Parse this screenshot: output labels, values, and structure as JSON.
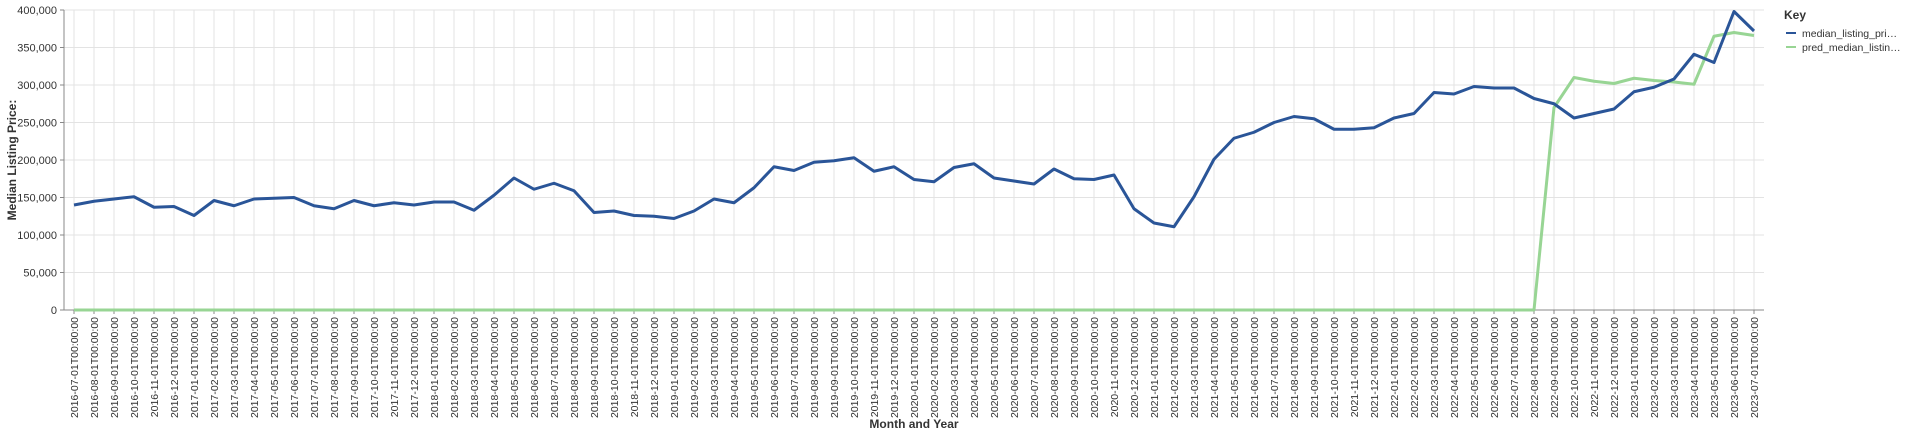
{
  "chart_data": {
    "type": "line",
    "x_label": "Month and Year",
    "y_label": "Median Listing Price:",
    "legend_title": "Key",
    "legend_position": "right",
    "grid": true,
    "categories": [
      "2016-07-01T00:00:00",
      "2016-08-01T00:00:00",
      "2016-09-01T00:00:00",
      "2016-10-01T00:00:00",
      "2016-11-01T00:00:00",
      "2016-12-01T00:00:00",
      "2017-01-01T00:00:00",
      "2017-02-01T00:00:00",
      "2017-03-01T00:00:00",
      "2017-04-01T00:00:00",
      "2017-05-01T00:00:00",
      "2017-06-01T00:00:00",
      "2017-07-01T00:00:00",
      "2017-08-01T00:00:00",
      "2017-09-01T00:00:00",
      "2017-10-01T00:00:00",
      "2017-11-01T00:00:00",
      "2017-12-01T00:00:00",
      "2018-01-01T00:00:00",
      "2018-02-01T00:00:00",
      "2018-03-01T00:00:00",
      "2018-04-01T00:00:00",
      "2018-05-01T00:00:00",
      "2018-06-01T00:00:00",
      "2018-07-01T00:00:00",
      "2018-08-01T00:00:00",
      "2018-09-01T00:00:00",
      "2018-10-01T00:00:00",
      "2018-11-01T00:00:00",
      "2018-12-01T00:00:00",
      "2019-01-01T00:00:00",
      "2019-02-01T00:00:00",
      "2019-03-01T00:00:00",
      "2019-04-01T00:00:00",
      "2019-05-01T00:00:00",
      "2019-06-01T00:00:00",
      "2019-07-01T00:00:00",
      "2019-08-01T00:00:00",
      "2019-09-01T00:00:00",
      "2019-10-01T00:00:00",
      "2019-11-01T00:00:00",
      "2019-12-01T00:00:00",
      "2020-01-01T00:00:00",
      "2020-02-01T00:00:00",
      "2020-03-01T00:00:00",
      "2020-04-01T00:00:00",
      "2020-05-01T00:00:00",
      "2020-06-01T00:00:00",
      "2020-07-01T00:00:00",
      "2020-08-01T00:00:00",
      "2020-09-01T00:00:00",
      "2020-10-01T00:00:00",
      "2020-11-01T00:00:00",
      "2020-12-01T00:00:00",
      "2021-01-01T00:00:00",
      "2021-02-01T00:00:00",
      "2021-03-01T00:00:00",
      "2021-04-01T00:00:00",
      "2021-05-01T00:00:00",
      "2021-06-01T00:00:00",
      "2021-07-01T00:00:00",
      "2021-08-01T00:00:00",
      "2021-09-01T00:00:00",
      "2021-10-01T00:00:00",
      "2021-11-01T00:00:00",
      "2021-12-01T00:00:00",
      "2022-01-01T00:00:00",
      "2022-02-01T00:00:00",
      "2022-03-01T00:00:00",
      "2022-04-01T00:00:00",
      "2022-05-01T00:00:00",
      "2022-06-01T00:00:00",
      "2022-07-01T00:00:00",
      "2022-08-01T00:00:00",
      "2022-09-01T00:00:00",
      "2022-10-01T00:00:00",
      "2022-11-01T00:00:00",
      "2022-12-01T00:00:00",
      "2023-01-01T00:00:00",
      "2023-02-01T00:00:00",
      "2023-03-01T00:00:00",
      "2023-04-01T00:00:00",
      "2023-05-01T00:00:00",
      "2023-06-01T00:00:00",
      "2023-07-01T00:00:00"
    ],
    "series": [
      {
        "name": "median_listing_pri…",
        "color": "#2a5598",
        "values": [
          140000,
          145000,
          148000,
          151000,
          137000,
          138000,
          126000,
          146000,
          139000,
          148000,
          149000,
          150000,
          139000,
          135000,
          146000,
          139000,
          143000,
          140000,
          144000,
          144000,
          133000,
          153000,
          176000,
          161000,
          169000,
          159000,
          130000,
          132000,
          126000,
          125000,
          122000,
          132000,
          148000,
          143000,
          163000,
          191000,
          186000,
          197000,
          199000,
          203000,
          185000,
          191000,
          174000,
          171000,
          190000,
          195000,
          176000,
          172000,
          168000,
          188000,
          175000,
          174000,
          180000,
          135000,
          116000,
          111000,
          151000,
          201000,
          229000,
          237000,
          250000,
          258000,
          255000,
          241000,
          241000,
          243000,
          256000,
          262000,
          290000,
          288000,
          298000,
          296000,
          296000,
          282000,
          275000,
          256000,
          262000,
          268000,
          291000,
          297000,
          308000,
          341000,
          330000,
          398000,
          372000
        ]
      },
      {
        "name": "pred_median_listin…",
        "color": "#98d594",
        "values": [
          0,
          0,
          0,
          0,
          0,
          0,
          0,
          0,
          0,
          0,
          0,
          0,
          0,
          0,
          0,
          0,
          0,
          0,
          0,
          0,
          0,
          0,
          0,
          0,
          0,
          0,
          0,
          0,
          0,
          0,
          0,
          0,
          0,
          0,
          0,
          0,
          0,
          0,
          0,
          0,
          0,
          0,
          0,
          0,
          0,
          0,
          0,
          0,
          0,
          0,
          0,
          0,
          0,
          0,
          0,
          0,
          0,
          0,
          0,
          0,
          0,
          0,
          0,
          0,
          0,
          0,
          0,
          0,
          0,
          0,
          0,
          0,
          0,
          0,
          270000,
          310000,
          305000,
          302000,
          309000,
          306000,
          304000,
          301000,
          365000,
          370000,
          366000
        ]
      }
    ],
    "ylim": [
      0,
      400000
    ],
    "yticks": [
      0,
      {
        "value": 50000,
        "label": "50,000"
      },
      {
        "value": 100000,
        "label": "100,000"
      },
      {
        "value": 150000,
        "label": "150,000"
      },
      {
        "value": 200000,
        "label": "200,000"
      },
      {
        "value": 250000,
        "label": "250,000"
      },
      {
        "value": 300000,
        "label": "300,000"
      },
      {
        "value": 350000,
        "label": "350,000"
      },
      {
        "value": 400000,
        "label": "400,000"
      }
    ]
  }
}
